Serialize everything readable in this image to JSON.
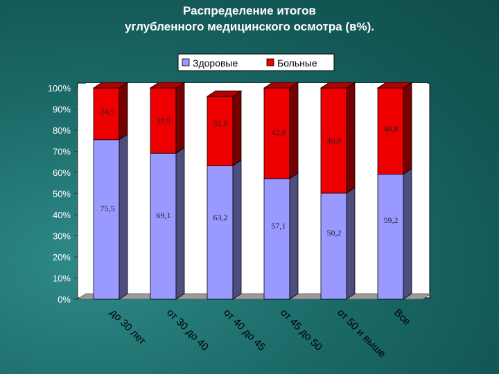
{
  "chart_data": {
    "type": "bar",
    "stacked": true,
    "title_lines": [
      "Распределение итогов",
      "углубленного медицинского осмотра (в%)."
    ],
    "categories": [
      "до 30 лет",
      "от 30 до 40",
      "от 40 до 45",
      "от 45 до 50",
      "от 50 и выше",
      "Все"
    ],
    "series": [
      {
        "name": "Здоровые",
        "color": "#9999ff",
        "values": [
          75.5,
          69.1,
          63.2,
          57.1,
          50.2,
          59.2
        ],
        "labels": [
          "75,5",
          "69,1",
          "63,2",
          "57,1",
          "50,2",
          "59,2"
        ]
      },
      {
        "name": "Больные",
        "color": "#ee0000",
        "values": [
          24.5,
          30.9,
          32.8,
          42.9,
          49.8,
          40.8
        ],
        "labels": [
          "24,5",
          "30,9",
          "32,8",
          "42,9",
          "49,8",
          "40,8"
        ]
      }
    ],
    "y_ticks": [
      "0%",
      "10%",
      "20%",
      "30%",
      "40%",
      "50%",
      "60%",
      "70%",
      "80%",
      "90%",
      "100%"
    ],
    "ylim": [
      0,
      100
    ],
    "legend_position": "top",
    "grid": false
  }
}
